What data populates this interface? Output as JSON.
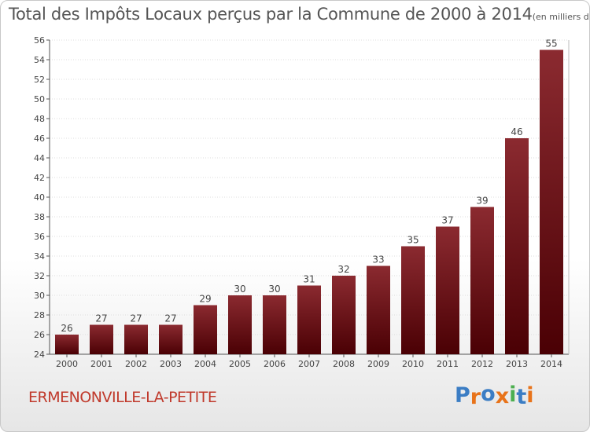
{
  "title": {
    "main": "Total des Impôts Locaux perçus par la Commune de 2000 à 2014",
    "unit": "(en milliers d'€)"
  },
  "commune": "ERMENONVILLE-LA-PETITE",
  "logo": {
    "text": "Proxiti",
    "colors": [
      "#3b7dc4",
      "#e8731a",
      "#3b7dc4",
      "#e8731a",
      "#4caf50",
      "#3b7dc4",
      "#e8731a"
    ]
  },
  "colors": {
    "bar_top": "#8b2a30",
    "bar_bottom": "#4a0004",
    "title": "#555555",
    "commune": "#c0392b",
    "grid": "#dddddd"
  },
  "chart_data": {
    "type": "bar",
    "title": "Total des Impôts Locaux perçus par la Commune de 2000 à 2014",
    "categories": [
      "2000",
      "2001",
      "2002",
      "2003",
      "2004",
      "2005",
      "2006",
      "2007",
      "2008",
      "2009",
      "2010",
      "2011",
      "2012",
      "2013",
      "2014"
    ],
    "values": [
      26,
      27,
      27,
      27,
      29,
      30,
      30,
      31,
      32,
      33,
      35,
      37,
      39,
      46,
      55
    ],
    "data_labels": [
      "26",
      "27",
      "27",
      "27",
      "29",
      "30",
      "30",
      "31",
      "32",
      "33",
      "35",
      "37",
      "39",
      "46",
      "55"
    ],
    "ylim": [
      24,
      56
    ],
    "yticks": [
      24,
      26,
      28,
      30,
      32,
      34,
      36,
      38,
      40,
      42,
      44,
      46,
      48,
      50,
      52,
      54,
      56
    ],
    "grid": true,
    "xlabel": "",
    "ylabel": ""
  }
}
